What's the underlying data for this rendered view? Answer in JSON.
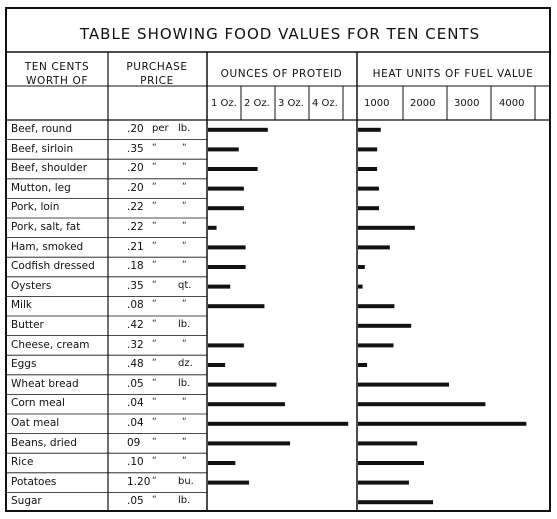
{
  "chart_data": {
    "type": "bar",
    "title": "TABLE SHOWING FOOD VALUES FOR TEN CENTS",
    "columns": {
      "food_header": [
        "TEN CENTS",
        "WORTH OF"
      ],
      "price_header": [
        "PURCHASE",
        "PRICE"
      ],
      "protein_header": "OUNCES OF PROTEID",
      "fuel_header": "HEAT UNITS OF FUEL VALUE"
    },
    "protein_ticks": [
      "1 Oz.",
      "2 Oz.",
      "3 Oz.",
      "4 Oz."
    ],
    "fuel_ticks": [
      "1000",
      "2000",
      "3000",
      "4000"
    ],
    "rows": [
      {
        "food": "Beef, round",
        "price": ".20",
        "unit": "per",
        "unit2": "lb."
      },
      {
        "food": "Beef, sirloin",
        "price": ".35",
        "unit": "“",
        "unit2": "“"
      },
      {
        "food": "Beef, shoulder",
        "price": ".20",
        "unit": "“",
        "unit2": "“"
      },
      {
        "food": "Mutton, leg",
        "price": ".20",
        "unit": "“",
        "unit2": "“"
      },
      {
        "food": "Pork, loin",
        "price": ".22",
        "unit": "“",
        "unit2": "“"
      },
      {
        "food": "Pork, salt, fat",
        "price": ".22",
        "unit": "“",
        "unit2": "“"
      },
      {
        "food": "Ham, smoked",
        "price": ".21",
        "unit": "“",
        "unit2": "“"
      },
      {
        "food": "Codfish dressed",
        "price": ".18",
        "unit": "“",
        "unit2": "“"
      },
      {
        "food": "Oysters",
        "price": ".35",
        "unit": "“",
        "unit2": "qt."
      },
      {
        "food": "Milk",
        "price": ".08",
        "unit": "“",
        "unit2": "“"
      },
      {
        "food": "Butter",
        "price": ".42",
        "unit": "“",
        "unit2": "lb."
      },
      {
        "food": "Cheese, cream",
        "price": ".32",
        "unit": "“",
        "unit2": "“"
      },
      {
        "food": "Eggs",
        "price": ".48",
        "unit": "“",
        "unit2": "dz."
      },
      {
        "food": "Wheat bread",
        "price": ".05",
        "unit": "“",
        "unit2": "lb."
      },
      {
        "food": "Corn meal",
        "price": ".04",
        "unit": "“",
        "unit2": "“"
      },
      {
        "food": "Oat meal",
        "price": ".04",
        "unit": "“",
        "unit2": "“"
      },
      {
        "food": "Beans, dried",
        "price": "09",
        "unit": "“",
        "unit2": "“"
      },
      {
        "food": "Rice",
        "price": ".10",
        "unit": "“",
        "unit2": "“"
      },
      {
        "food": "Potatoes",
        "price": "1.20",
        "unit": "“",
        "unit2": "bu."
      },
      {
        "food": "Sugar",
        "price": ".05",
        "unit": "“",
        "unit2": "lb."
      }
    ],
    "series": [
      {
        "name": "OUNCES OF PROTEID",
        "unit": "oz",
        "values": [
          1.75,
          0.9,
          1.45,
          1.05,
          1.05,
          0.25,
          1.1,
          1.1,
          0.65,
          1.65,
          0.0,
          1.05,
          0.5,
          2.0,
          2.25,
          4.1,
          2.4,
          0.8,
          1.2,
          0.0
        ]
      },
      {
        "name": "HEAT UNITS OF FUEL VALUE",
        "unit": "calories",
        "values": [
          500,
          420,
          420,
          460,
          460,
          1250,
          700,
          150,
          100,
          800,
          1170,
          780,
          200,
          2000,
          2800,
          3700,
          1300,
          1450,
          1120,
          1650
        ]
      }
    ],
    "xlim_protein": [
      0,
      4.5
    ],
    "xlim_fuel": [
      0,
      4600
    ],
    "grid": true
  }
}
